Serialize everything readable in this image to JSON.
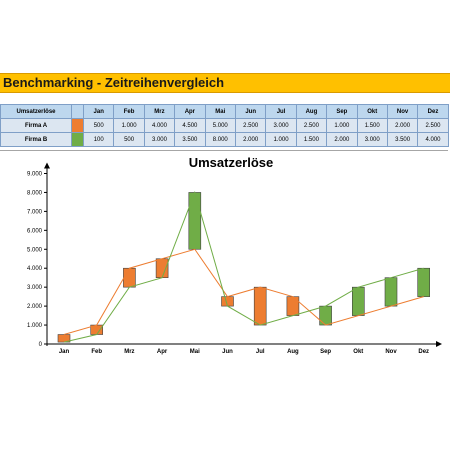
{
  "sheet": {
    "title": "Benchmarking - Zeitreihenvergleich",
    "table": {
      "header": {
        "label": "Umsatzerlöse",
        "months": [
          "Jan",
          "Feb",
          "Mrz",
          "Apr",
          "Mai",
          "Jun",
          "Jul",
          "Aug",
          "Sep",
          "Okt",
          "Nov",
          "Dez"
        ]
      },
      "rows": [
        {
          "name": "Firma A",
          "color": "#ed7d31",
          "values": [
            "500",
            "1.000",
            "4.000",
            "4.500",
            "5.000",
            "2.500",
            "3.000",
            "2.500",
            "1.000",
            "1.500",
            "2.000",
            "2.500"
          ]
        },
        {
          "name": "Firma B",
          "color": "#70ad47",
          "values": [
            "100",
            "500",
            "3.000",
            "3.500",
            "8.000",
            "2.000",
            "1.000",
            "1.500",
            "2.000",
            "3.000",
            "3.500",
            "4.000"
          ]
        }
      ]
    }
  },
  "chart_data": {
    "type": "line",
    "title": "Umsatzerlöse",
    "categories": [
      "Jan",
      "Feb",
      "Mrz",
      "Apr",
      "Mai",
      "Jun",
      "Jul",
      "Aug",
      "Sep",
      "Okt",
      "Nov",
      "Dez"
    ],
    "series": [
      {
        "name": "Firma A",
        "color": "#ed7d31",
        "values": [
          500,
          1000,
          4000,
          4500,
          5000,
          2500,
          3000,
          2500,
          1000,
          1500,
          2000,
          2500
        ]
      },
      {
        "name": "Firma B",
        "color": "#70ad47",
        "values": [
          100,
          500,
          3000,
          3500,
          8000,
          2000,
          1000,
          1500,
          2000,
          3000,
          3500,
          4000
        ]
      }
    ],
    "up_down_bars": true,
    "ylim": [
      0,
      9000
    ],
    "ytick_labels": [
      "0",
      "1.000",
      "2.000",
      "3.000",
      "4.000",
      "5.000",
      "6.000",
      "7.000",
      "8.000",
      "9.000"
    ],
    "grid": false,
    "legend": "none"
  }
}
